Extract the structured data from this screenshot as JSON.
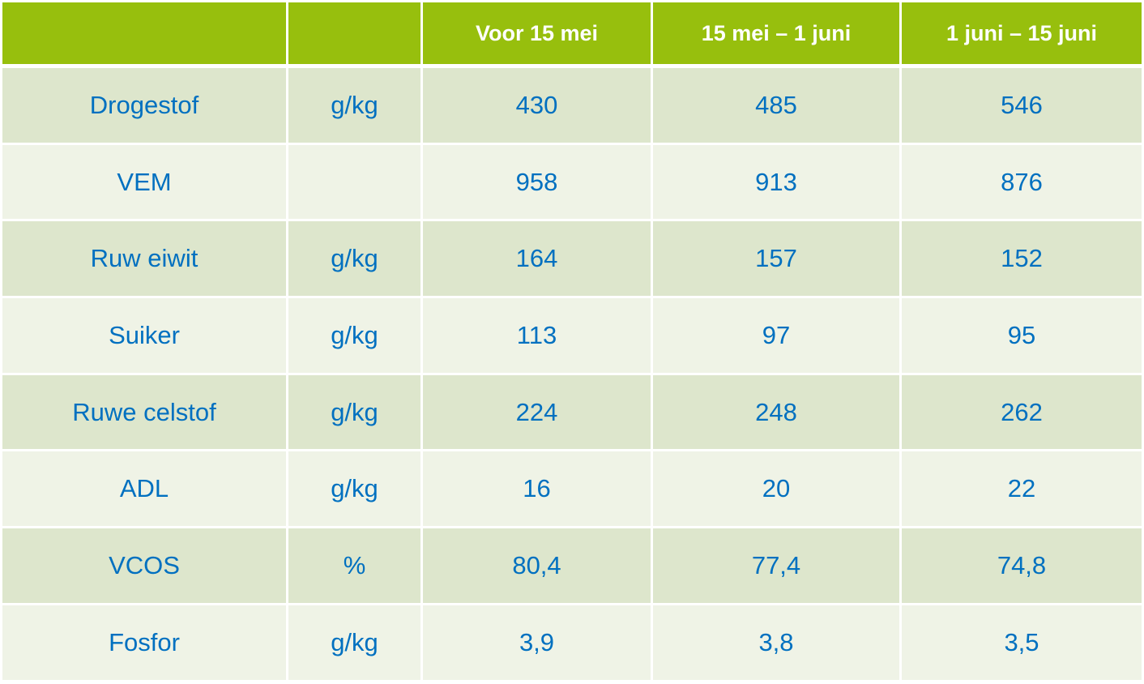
{
  "table": {
    "header": [
      "Voor 15 mei",
      "15 mei – 1 juni",
      "1 juni – 15 juni"
    ],
    "rows": [
      {
        "label": "Drogestof",
        "unit": "g/kg",
        "values": [
          "430",
          "485",
          "546"
        ]
      },
      {
        "label": "VEM",
        "values": [
          "958",
          "913",
          "876"
        ]
      },
      {
        "label": "Ruw eiwit",
        "unit": "g/kg",
        "values": [
          "164",
          "157",
          "152"
        ]
      },
      {
        "label": "Suiker",
        "unit": "g/kg",
        "values": [
          "113",
          "97",
          "95"
        ]
      },
      {
        "label": "Ruwe celstof",
        "unit": "g/kg",
        "values": [
          "224",
          "248",
          "262"
        ]
      },
      {
        "label": "ADL",
        "unit": "g/kg",
        "values": [
          "16",
          "20",
          "22"
        ]
      },
      {
        "label": "VCOS",
        "unit": "%",
        "values": [
          "80,4",
          "77,4",
          "74,8"
        ]
      },
      {
        "label": "Fosfor",
        "unit": "g/kg",
        "values": [
          "3,9",
          "3,8",
          "3,5"
        ]
      }
    ]
  }
}
